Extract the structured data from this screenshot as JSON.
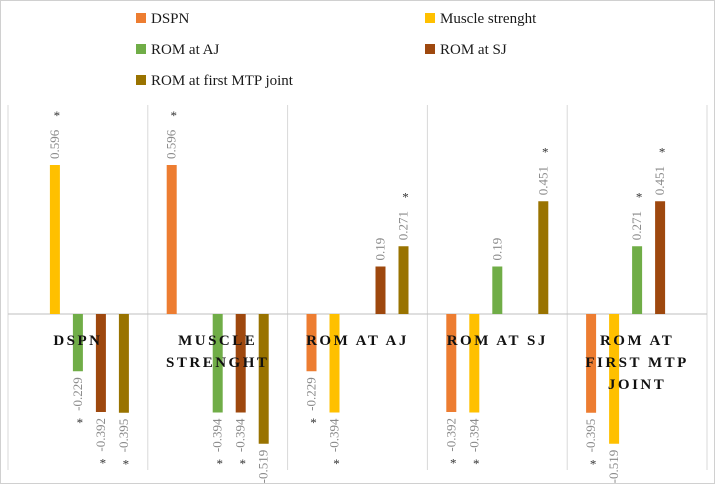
{
  "chart_data": {
    "type": "bar",
    "categories": [
      [
        "DSPN"
      ],
      [
        "MUSCLE",
        "STRENGHT"
      ],
      [
        "ROM AT AJ"
      ],
      [
        "ROM AT SJ"
      ],
      [
        "ROM AT",
        "FIRST MTP",
        "JOINT"
      ]
    ],
    "series": [
      {
        "name": "DSPN",
        "color": "#ED7D31",
        "values": [
          null,
          0.596,
          -0.229,
          -0.392,
          -0.395
        ],
        "labels": [
          null,
          "0.596",
          "-0.229",
          "-0.392",
          "-0.395"
        ],
        "significant": [
          false,
          true,
          true,
          true,
          true
        ]
      },
      {
        "name": "Muscle strenght",
        "color": "#FFC000",
        "values": [
          0.596,
          null,
          -0.394,
          -0.394,
          -0.519
        ],
        "labels": [
          "0.596",
          null,
          "-0.394",
          "-0.394",
          "-0.519"
        ],
        "significant": [
          true,
          false,
          true,
          true,
          true
        ]
      },
      {
        "name": "ROM at AJ",
        "color": "#70AD47",
        "values": [
          -0.229,
          -0.394,
          null,
          0.19,
          0.271
        ],
        "labels": [
          "-0.229",
          "-0.394",
          null,
          "0.19",
          "0.271"
        ],
        "significant": [
          true,
          true,
          false,
          false,
          true
        ]
      },
      {
        "name": "ROM at SJ",
        "color": "#9E480E",
        "values": [
          -0.392,
          -0.394,
          0.19,
          null,
          0.451
        ],
        "labels": [
          "-0.392",
          "-0.394",
          "0.19",
          null,
          "0.451"
        ],
        "significant": [
          true,
          true,
          false,
          false,
          true
        ]
      },
      {
        "name": "ROM at first MTP joint",
        "color": "#997300",
        "values": [
          -0.395,
          -0.519,
          0.271,
          0.451,
          null
        ],
        "labels": [
          "-0.395",
          "-0.519",
          "0.271",
          "0.451",
          null
        ],
        "significant": [
          true,
          true,
          true,
          true,
          false
        ]
      }
    ],
    "significance_marker": "*",
    "ylim": [
      -0.55,
      0.65
    ],
    "grid": false,
    "legend_position": "top"
  }
}
